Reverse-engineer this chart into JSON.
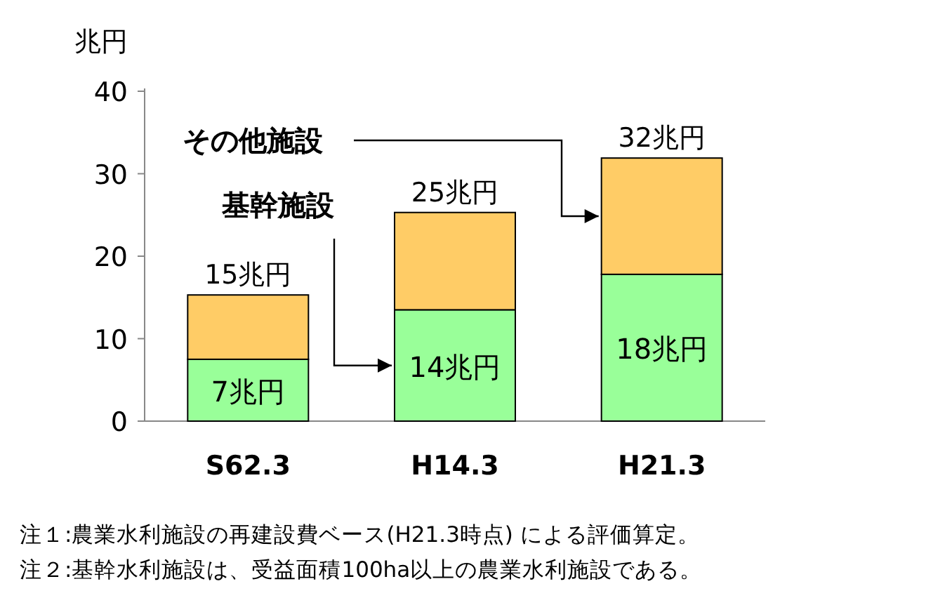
{
  "chart_data": {
    "type": "bar",
    "stacked": true,
    "ylabel": "兆円",
    "categories": [
      "S62.3",
      "H14.3",
      "H21.3"
    ],
    "series": [
      {
        "name": "基幹施設",
        "color": "#99ff99",
        "values": [
          7.5,
          13.5,
          17.8
        ],
        "value_labels": [
          "7兆円",
          "14兆円",
          "18兆円"
        ]
      },
      {
        "name": "その他施設",
        "color": "#ffcc66",
        "values": [
          7.8,
          11.8,
          14.1
        ]
      }
    ],
    "totals": [
      "15兆円",
      "25兆円",
      "32兆円"
    ],
    "ylim": [
      0,
      40
    ],
    "yticks": [
      0,
      10,
      20,
      30,
      40
    ],
    "grid": false,
    "annotations": [
      "注１:農業水利施設の再建設費ベース(H21.3時点) による評価算定。",
      "注２:基幹水利施設は、受益面積100ha以上の農業水利施設である。"
    ]
  }
}
